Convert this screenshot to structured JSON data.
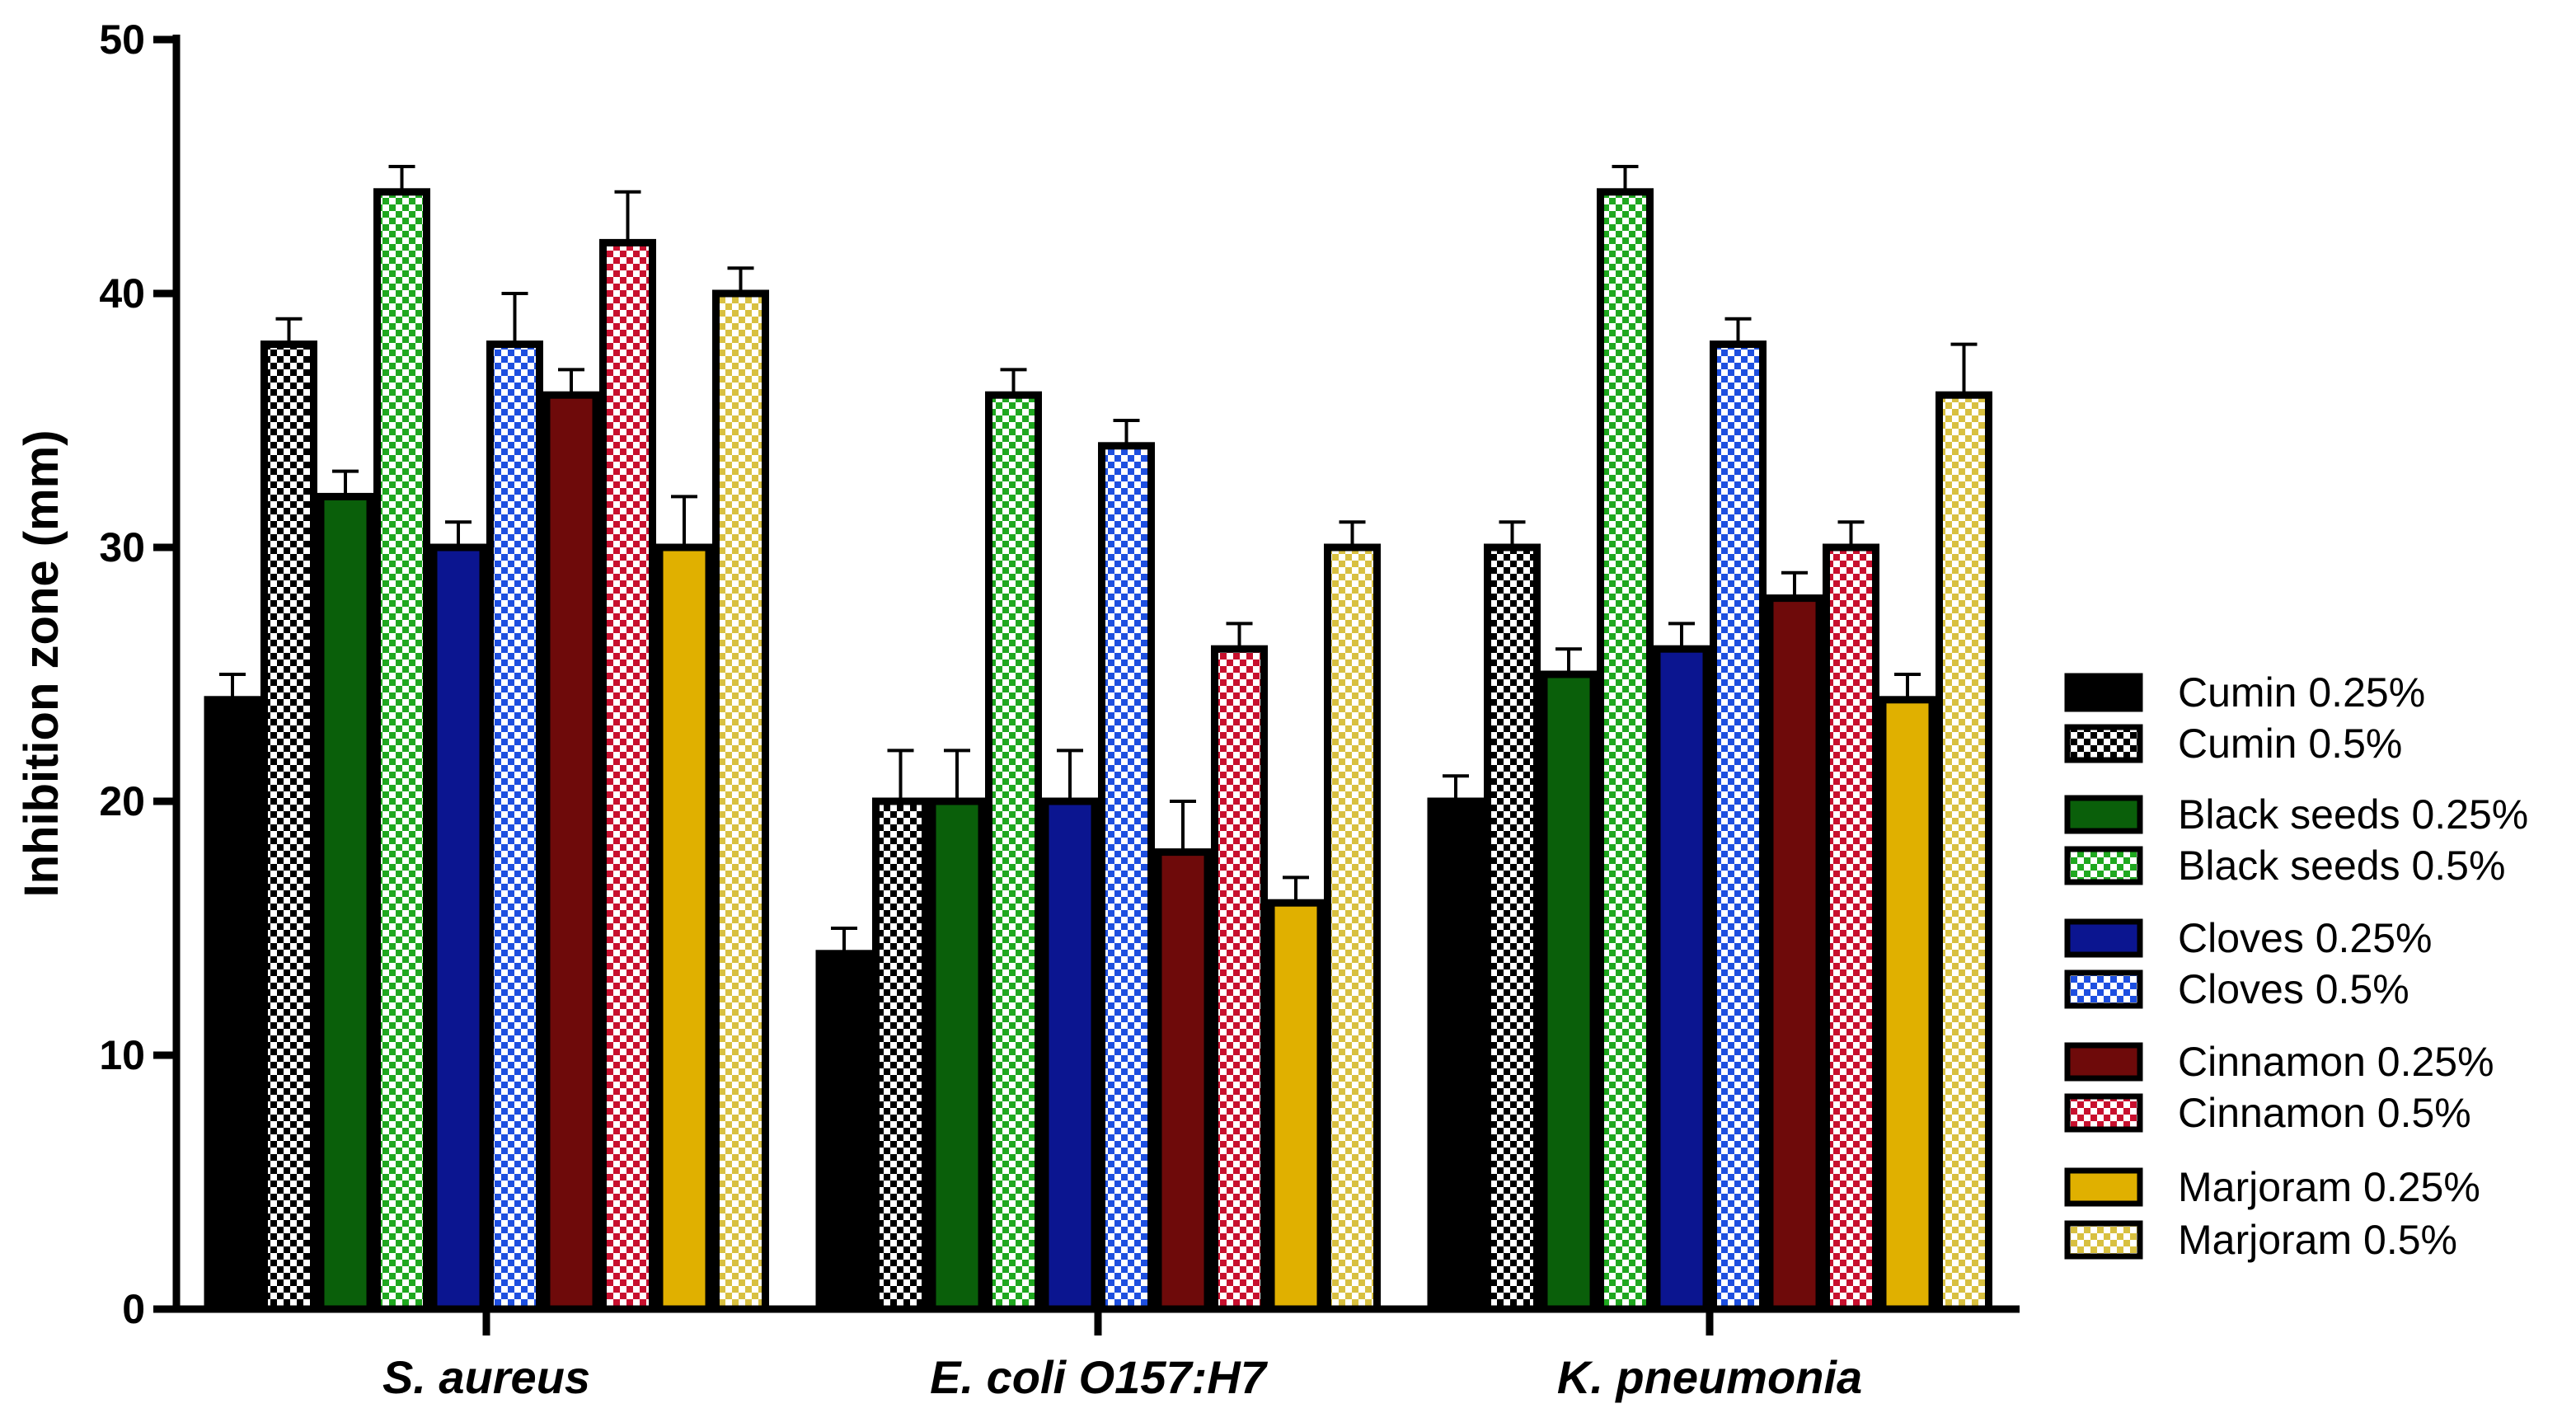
{
  "chart_data": {
    "type": "bar",
    "title": "",
    "xlabel": "",
    "ylabel": "Inhibition zone (mm)",
    "ylim": [
      0,
      50
    ],
    "yticks": [
      0,
      10,
      20,
      30,
      40,
      50
    ],
    "categories": [
      "S. aureus",
      "E. coli O157:H7",
      "K. pneumonia"
    ],
    "series": [
      {
        "name": "Cumin 0.25%",
        "color": "#000000",
        "pattern": "solid",
        "values": [
          24,
          14,
          20
        ],
        "errors": [
          1,
          1,
          1
        ]
      },
      {
        "name": "Cumin 0.5%",
        "color": "#000000",
        "pattern": "checker",
        "values": [
          38,
          20,
          30
        ],
        "errors": [
          1,
          2,
          1
        ]
      },
      {
        "name": "Black seeds 0.25%",
        "color": "#0a5f0a",
        "pattern": "solid",
        "values": [
          32,
          20,
          25
        ],
        "errors": [
          1,
          2,
          1
        ]
      },
      {
        "name": "Black seeds 0.5%",
        "color": "#1fa81f",
        "pattern": "checker",
        "values": [
          44,
          36,
          44
        ],
        "errors": [
          1,
          1,
          1
        ]
      },
      {
        "name": "Cloves 0.25%",
        "color": "#0b1590",
        "pattern": "solid",
        "values": [
          30,
          20,
          26
        ],
        "errors": [
          1,
          2,
          1
        ]
      },
      {
        "name": "Cloves 0.5%",
        "color": "#1e4fe0",
        "pattern": "checker",
        "values": [
          38,
          34,
          38
        ],
        "errors": [
          2,
          1,
          1
        ]
      },
      {
        "name": "Cinnamon 0.25%",
        "color": "#6e0a0a",
        "pattern": "solid",
        "values": [
          36,
          18,
          28
        ],
        "errors": [
          1,
          2,
          1
        ]
      },
      {
        "name": "Cinnamon 0.5%",
        "color": "#c8102e",
        "pattern": "checker",
        "values": [
          42,
          26,
          30
        ],
        "errors": [
          2,
          1,
          1
        ]
      },
      {
        "name": "Marjoram 0.25%",
        "color": "#e0b000",
        "pattern": "solid",
        "values": [
          30,
          16,
          24
        ],
        "errors": [
          2,
          1,
          1
        ]
      },
      {
        "name": "Marjoram 0.5%",
        "color": "#d8c040",
        "pattern": "checker",
        "values": [
          40,
          30,
          36
        ],
        "errors": [
          1,
          1,
          2
        ]
      }
    ]
  }
}
